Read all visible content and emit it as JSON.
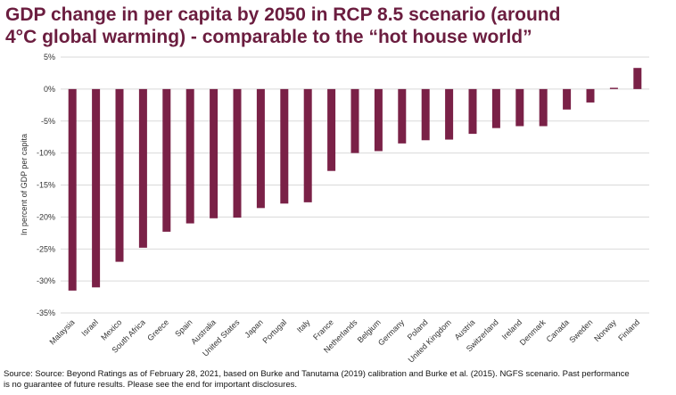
{
  "chart_data": {
    "type": "bar",
    "title_line1": "GDP change in per capita by 2050 in RCP 8.5 scenario (around",
    "title_line2": "4°C global warming) - comparable to the “hot house world”",
    "ylabel": "In percent of GDP per capita",
    "xlabel": "",
    "ylim": [
      -35,
      5
    ],
    "yticks": [
      5,
      0,
      -5,
      -10,
      -15,
      -20,
      -25,
      -30,
      -35
    ],
    "ytick_labels": [
      "5%",
      "0%",
      "-5%",
      "-10%",
      "-15%",
      "-20%",
      "-25%",
      "-30%",
      "-35%"
    ],
    "grid": true,
    "legend": "none",
    "bar_color": "#7a2147",
    "categories": [
      "Malaysia",
      "Israel",
      "Mexico",
      "South Africa",
      "Greece",
      "Spain",
      "Australia",
      "United States",
      "Japan",
      "Portugal",
      "Italy",
      "France",
      "Netherlands",
      "Belgium",
      "Germany",
      "Poland",
      "United Kingdom",
      "Austria",
      "Switzerland",
      "Ireland",
      "Denmark",
      "Canada",
      "Sweden",
      "Norway",
      "Finland"
    ],
    "values": [
      -31.5,
      -31.0,
      -27.0,
      -24.8,
      -22.3,
      -21.0,
      -20.2,
      -20.1,
      -18.6,
      -17.9,
      -17.7,
      -12.8,
      -10.0,
      -9.7,
      -8.5,
      -8.0,
      -7.9,
      -7.0,
      -6.1,
      -5.8,
      -5.8,
      -3.2,
      -2.1,
      0.2,
      3.3
    ]
  },
  "footer": {
    "source_line1": "Source: Source: Beyond Ratings as of February 28, 2021, based on Burke and Tanutama (2019) calibration and Burke et al. (2015). NGFS scenario. Past performance",
    "source_line2": "is no guarantee of future results. Please see the end for important disclosures."
  }
}
